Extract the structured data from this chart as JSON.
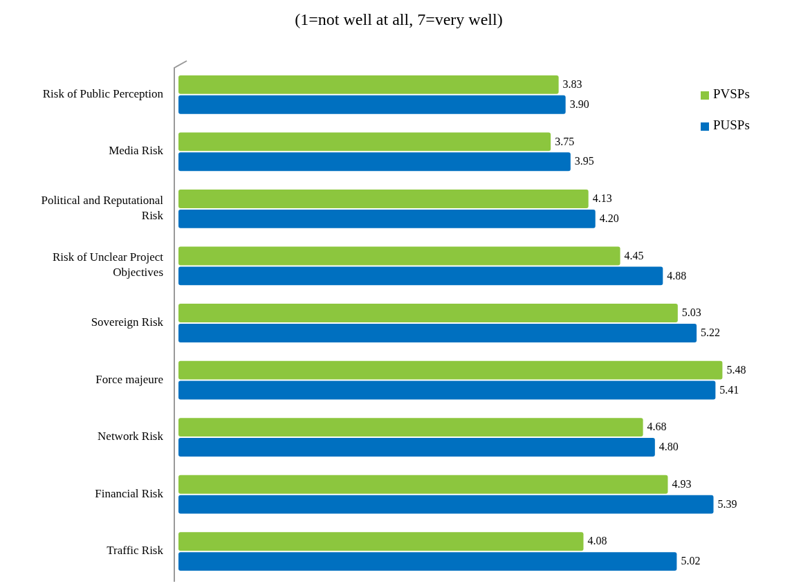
{
  "chart_data": {
    "type": "bar",
    "orientation": "horizontal",
    "title": "(1=not well at all, 7=very well)",
    "categories": [
      "Risk of Public Perception",
      "Media Risk",
      "Political and Reputational Risk",
      "Risk of Unclear Project Objectives",
      "Sovereign Risk",
      "Force majeure",
      "Network Risk",
      "Financial Risk",
      "Traffic Risk"
    ],
    "series": [
      {
        "name": "PVSPs",
        "color": "#8cc63e",
        "values": [
          3.83,
          3.75,
          4.13,
          4.45,
          5.03,
          5.48,
          4.68,
          4.93,
          4.08
        ],
        "value_labels": [
          "3.83",
          "3.75",
          "4.13",
          "4.45",
          "5.03",
          "5.48",
          "4.68",
          "4.93",
          "4.08"
        ]
      },
      {
        "name": "PUSPs",
        "color": "#0070c0",
        "values": [
          3.9,
          3.95,
          4.2,
          4.88,
          5.22,
          5.41,
          4.8,
          5.39,
          5.02
        ],
        "value_labels": [
          "3.90",
          "3.95",
          "4.20",
          "4.88",
          "5.22",
          "5.41",
          "4.80",
          "5.39",
          "5.02"
        ]
      }
    ],
    "legend": "top right",
    "grid": false
  }
}
